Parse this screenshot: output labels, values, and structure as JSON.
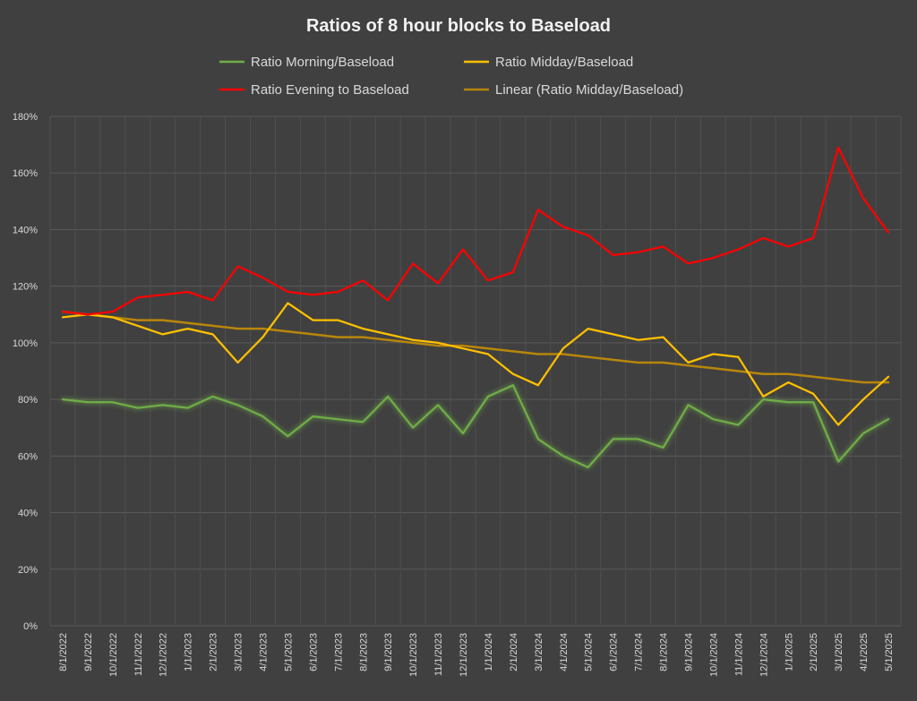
{
  "chart_data": {
    "type": "line",
    "title": "Ratios of 8 hour blocks to Baseload",
    "legend_position": "top",
    "grid": true,
    "ylim": [
      0,
      1.8
    ],
    "yticks": [
      0,
      0.2,
      0.4,
      0.6,
      0.8,
      1.0,
      1.2,
      1.4,
      1.6,
      1.8
    ],
    "ytick_labels": [
      "0%",
      "20%",
      "40%",
      "60%",
      "80%",
      "100%",
      "120%",
      "140%",
      "160%",
      "180%"
    ],
    "categories": [
      "8/1/2022",
      "9/1/2022",
      "10/1/2022",
      "11/1/2022",
      "12/1/2022",
      "1/1/2023",
      "2/1/2023",
      "3/1/2023",
      "4/1/2023",
      "5/1/2023",
      "6/1/2023",
      "7/1/2023",
      "8/1/2023",
      "9/1/2023",
      "10/1/2023",
      "11/1/2023",
      "12/1/2023",
      "1/1/2024",
      "2/1/2024",
      "3/1/2024",
      "4/1/2024",
      "5/1/2024",
      "6/1/2024",
      "7/1/2024",
      "8/1/2024",
      "9/1/2024",
      "10/1/2024",
      "11/1/2024",
      "12/1/2024",
      "1/1/2025",
      "2/1/2025",
      "3/1/2025",
      "4/1/2025",
      "5/1/2025"
    ],
    "series": [
      {
        "name": "Ratio Morning/Baseload",
        "color": "#70ad47",
        "glow": true,
        "values": [
          0.8,
          0.79,
          0.79,
          0.77,
          0.78,
          0.77,
          0.81,
          0.78,
          0.74,
          0.67,
          0.74,
          0.73,
          0.72,
          0.81,
          0.7,
          0.78,
          0.68,
          0.81,
          0.85,
          0.66,
          0.6,
          0.56,
          0.66,
          0.66,
          0.63,
          0.78,
          0.73,
          0.71,
          0.8,
          0.79,
          0.79,
          0.58,
          0.68,
          0.73
        ]
      },
      {
        "name": "Ratio Midday/Baseload",
        "color": "#ffc000",
        "glow": false,
        "values": [
          1.09,
          1.1,
          1.09,
          1.06,
          1.03,
          1.05,
          1.03,
          0.93,
          1.02,
          1.14,
          1.08,
          1.08,
          1.05,
          1.03,
          1.01,
          1.0,
          0.98,
          0.96,
          0.89,
          0.85,
          0.98,
          1.05,
          1.03,
          1.01,
          1.02,
          0.93,
          0.96,
          0.95,
          0.81,
          0.86,
          0.82,
          0.71,
          0.8,
          0.88
        ]
      },
      {
        "name": "Ratio Evening to Baseload",
        "color": "#ff0000",
        "glow": false,
        "values": [
          1.11,
          1.1,
          1.11,
          1.16,
          1.17,
          1.18,
          1.15,
          1.27,
          1.23,
          1.18,
          1.17,
          1.18,
          1.22,
          1.15,
          1.28,
          1.21,
          1.33,
          1.22,
          1.25,
          1.47,
          1.41,
          1.38,
          1.31,
          1.32,
          1.34,
          1.28,
          1.3,
          1.33,
          1.37,
          1.34,
          1.37,
          1.69,
          1.51,
          1.39
        ]
      },
      {
        "name": "Linear (Ratio Midday/Baseload)",
        "color": "#b8860b",
        "glow": false,
        "trendline": true,
        "values": [
          1.11,
          1.1,
          1.09,
          1.08,
          1.08,
          1.07,
          1.06,
          1.05,
          1.05,
          1.04,
          1.03,
          1.02,
          1.02,
          1.01,
          1.0,
          0.99,
          0.99,
          0.98,
          0.97,
          0.96,
          0.96,
          0.95,
          0.94,
          0.93,
          0.93,
          0.92,
          0.91,
          0.9,
          0.89,
          0.89,
          0.88,
          0.87,
          0.86,
          0.86
        ]
      }
    ]
  }
}
